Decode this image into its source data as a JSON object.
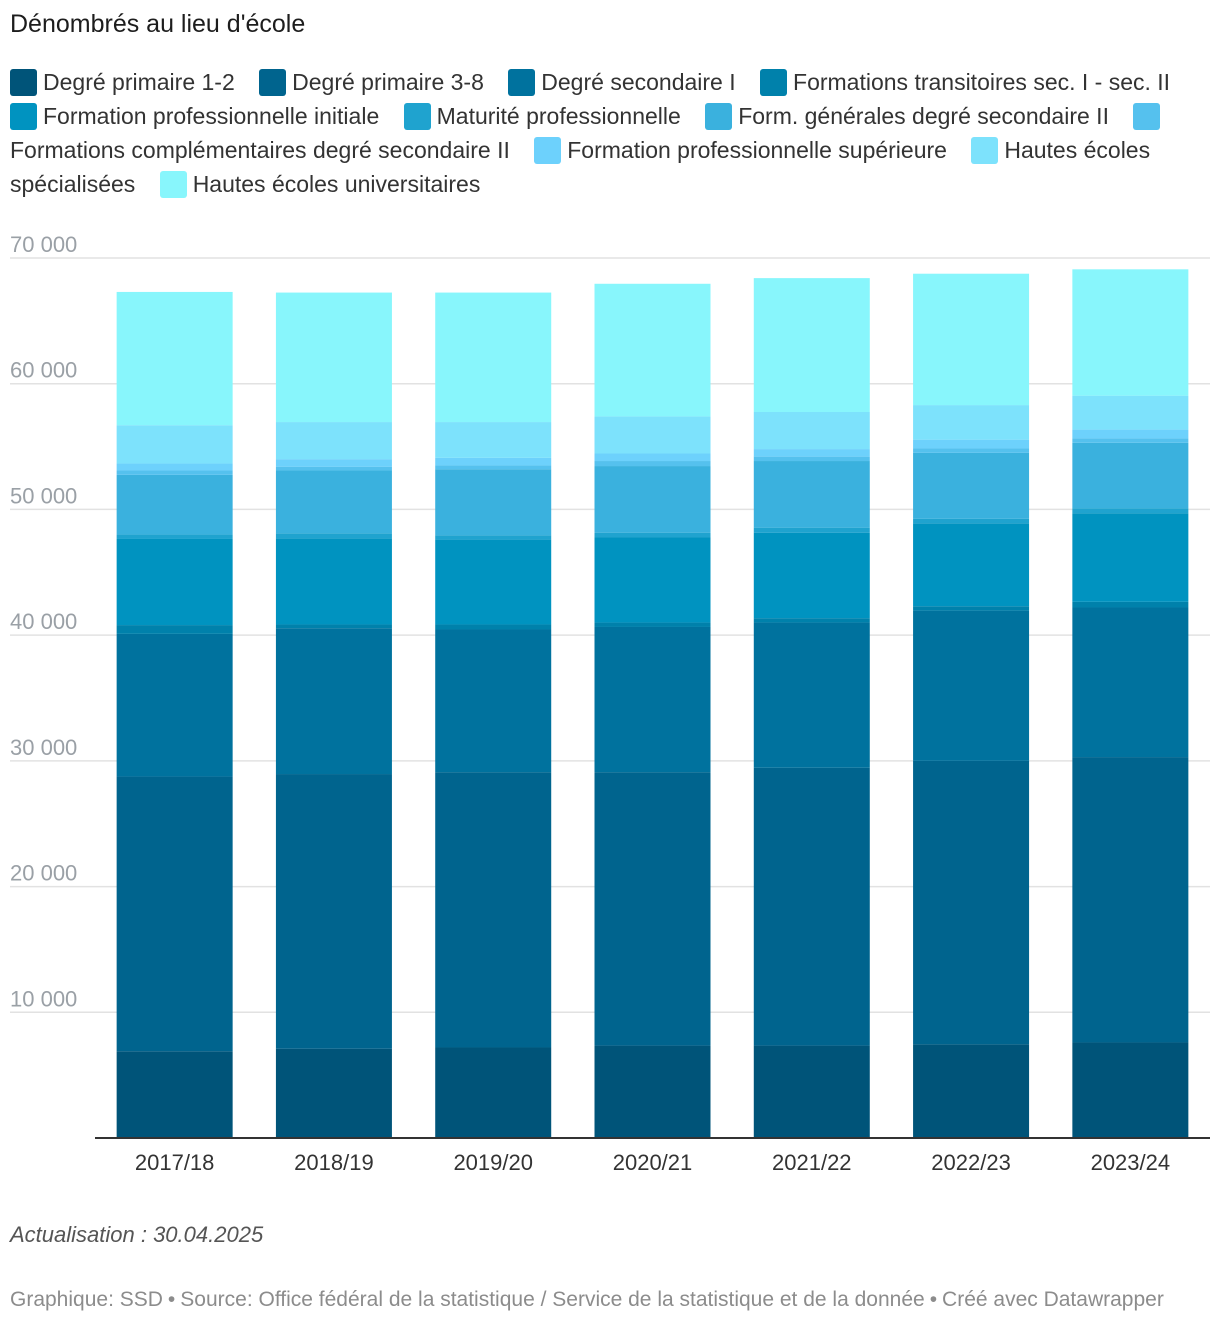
{
  "title": "Dénombrés au lieu d'école",
  "footnote": "Actualisation : 30.04.2025",
  "credits": {
    "graphic": "Graphique: SSD",
    "source": "Source: Office fédéral de la statistique / Service de la statistique et de la donnée",
    "tool": "Créé avec Datawrapper",
    "separator": "•"
  },
  "chart_data": {
    "type": "bar",
    "stacked": true,
    "categories": [
      "2017/18",
      "2018/19",
      "2019/20",
      "2020/21",
      "2021/22",
      "2022/23",
      "2023/24"
    ],
    "ylim": [
      0,
      70000
    ],
    "yticks": [
      10000,
      20000,
      30000,
      40000,
      50000,
      60000,
      70000
    ],
    "ytick_labels": [
      "10 000",
      "20 000",
      "30 000",
      "40 000",
      "50 000",
      "60 000",
      "70 000"
    ],
    "grid": true,
    "legend_position": "top",
    "series": [
      {
        "name": "Degré primaire 1-2",
        "color": "#005479",
        "values": [
          6900,
          7100,
          7200,
          7350,
          7350,
          7450,
          7600
        ]
      },
      {
        "name": "Degré primaire 3-8",
        "color": "#00648e",
        "values": [
          21850,
          21850,
          21900,
          21750,
          22100,
          22550,
          22700
        ]
      },
      {
        "name": "Degré secondaire I",
        "color": "#00729e",
        "values": [
          11350,
          11600,
          11350,
          11550,
          11550,
          11950,
          11900
        ]
      },
      {
        "name": "Formations transitoires sec. I - sec. II",
        "color": "#0081ab",
        "values": [
          700,
          300,
          400,
          350,
          350,
          350,
          450
        ]
      },
      {
        "name": "Formation professionnelle initiale",
        "color": "#0093c0",
        "values": [
          6850,
          6850,
          6750,
          6800,
          6800,
          6600,
          7050
        ]
      },
      {
        "name": "Maturité professionnelle",
        "color": "#1fa3cf",
        "values": [
          350,
          400,
          350,
          350,
          400,
          350,
          400
        ]
      },
      {
        "name": "Form. générales degré secondaire II",
        "color": "#3ab1de",
        "values": [
          4750,
          5000,
          5250,
          5300,
          5300,
          5250,
          5200
        ]
      },
      {
        "name": "Formations complémentaires degré secondaire II",
        "color": "#55c1ee",
        "values": [
          350,
          300,
          300,
          400,
          350,
          350,
          350
        ]
      },
      {
        "name": "Formation professionnelle supérieure",
        "color": "#6dd1fc",
        "values": [
          550,
          600,
          600,
          600,
          600,
          700,
          700
        ]
      },
      {
        "name": "Hautes écoles spécialisées",
        "color": "#7de2fc",
        "values": [
          3050,
          2950,
          2850,
          2950,
          2950,
          2750,
          2700
        ]
      },
      {
        "name": "Hautes écoles universitaires",
        "color": "#88f6fc",
        "values": [
          10600,
          10300,
          10300,
          10550,
          10650,
          10450,
          10050
        ]
      }
    ]
  }
}
